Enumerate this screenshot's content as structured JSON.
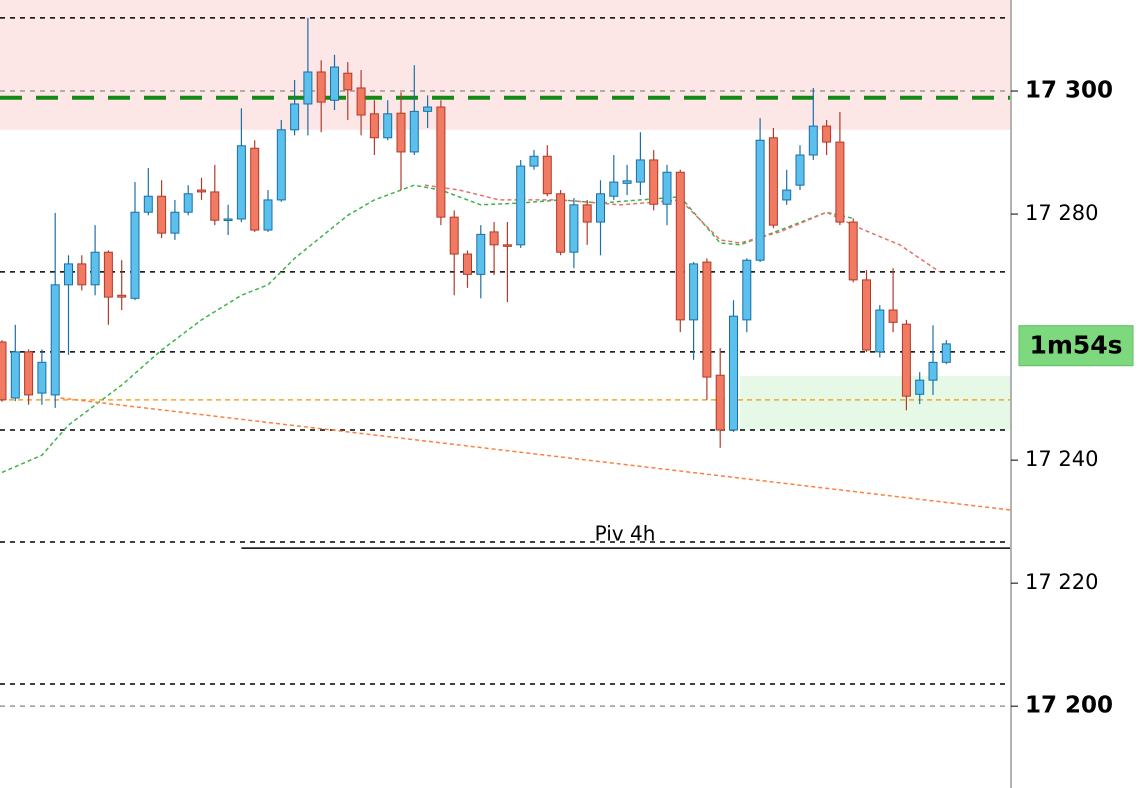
{
  "chart_data": {
    "type": "candlestick",
    "ylim": [
      17186.7,
      17314.8
    ],
    "yticks": [
      {
        "value": 17200,
        "label": "17 200",
        "bold": true
      },
      {
        "value": 17220,
        "label": "17 220"
      },
      {
        "value": 17240,
        "label": "17 240"
      },
      {
        "value": 17280,
        "label": "17 280"
      },
      {
        "value": 17300,
        "label": "17 300",
        "bold": true
      }
    ],
    "up_color": "#5bc0eb",
    "down_color": "#f07a62",
    "open": [
      17259.2,
      17250.1,
      17257.6,
      17250.9,
      17250.6,
      17268.5,
      17271.9,
      17268.5,
      17273.8,
      17266.8,
      17266.3,
      17280.3,
      17282.9,
      17276.9,
      17280.3,
      17283.9,
      17283.6,
      17279.0,
      17279.2,
      17290.7,
      17277.4,
      17282.3,
      17293.7,
      17297.9,
      17303.1,
      17298.5,
      17302.9,
      17300.5,
      17296.3,
      17292.4,
      17296.4,
      17290.1,
      17296.7,
      17297.4,
      17279.5,
      17273.5,
      17270.2,
      17277.1,
      17275.0,
      17275.0,
      17287.8,
      17289.4,
      17283.3,
      17273.8,
      17281.5,
      17278.7,
      17282.9,
      17285.0,
      17285.2,
      17288.8,
      17281.6,
      17286.8,
      17262.8,
      17272.2,
      17253.8,
      17244.9,
      17262.8,
      17272.5,
      17292.4,
      17282.3,
      17284.7,
      17289.6,
      17294.3,
      17291.7,
      17278.7,
      17269.3,
      17257.6,
      17264.4,
      17262.1,
      17250.7,
      17253.0,
      17255.9
    ],
    "high": [
      17259.5,
      17262.0,
      17258.0,
      17258.0,
      17280.2,
      17273.3,
      17273.3,
      17278.2,
      17274.1,
      17272.5,
      17285.2,
      17287.5,
      17285.5,
      17282.3,
      17284.7,
      17285.9,
      17288.0,
      17281.5,
      17297.2,
      17292.0,
      17283.9,
      17295.3,
      17301.8,
      17311.9,
      17305.0,
      17305.9,
      17304.7,
      17303.4,
      17298.5,
      17298.5,
      17299.8,
      17304.2,
      17299.3,
      17298.5,
      17280.6,
      17274.1,
      17278.2,
      17278.7,
      17278.7,
      17288.8,
      17290.4,
      17291.2,
      17283.9,
      17282.6,
      17282.3,
      17285.5,
      17289.6,
      17288.0,
      17293.3,
      17290.4,
      17288.0,
      17287.2,
      17272.2,
      17272.8,
      17258.2,
      17266.0,
      17272.8,
      17295.6,
      17294.0,
      17287.2,
      17291.2,
      17300.5,
      17295.3,
      17296.6,
      17279.3,
      17270.9,
      17265.2,
      17271.2,
      17262.8,
      17254.3,
      17261.9,
      17259.5
    ],
    "low": [
      17249.5,
      17249.6,
      17249.0,
      17249.0,
      17248.5,
      17257.1,
      17267.6,
      17266.8,
      17262.0,
      17264.4,
      17266.0,
      17279.8,
      17276.1,
      17275.8,
      17279.8,
      17282.3,
      17278.2,
      17276.6,
      17278.7,
      17277.1,
      17277.1,
      17282.0,
      17292.8,
      17292.8,
      17293.3,
      17296.9,
      17295.3,
      17292.8,
      17289.6,
      17292.0,
      17283.9,
      17289.6,
      17294.0,
      17278.2,
      17266.8,
      17268.0,
      17266.3,
      17270.1,
      17265.7,
      17274.5,
      17287.2,
      17282.9,
      17273.3,
      17271.2,
      17275.0,
      17273.3,
      17282.3,
      17283.1,
      17283.1,
      17280.6,
      17278.2,
      17260.8,
      17256.3,
      17249.8,
      17242.0,
      17244.6,
      17260.8,
      17272.2,
      17277.7,
      17281.5,
      17283.9,
      17288.8,
      17289.6,
      17278.2,
      17268.9,
      17257.6,
      17256.7,
      17260.8,
      17248.1,
      17249.1,
      17250.6,
      17255.6
    ],
    "close": [
      17249.8,
      17257.6,
      17250.6,
      17255.9,
      17268.5,
      17271.9,
      17268.5,
      17273.8,
      17266.5,
      17266.5,
      17280.3,
      17282.9,
      17276.9,
      17280.3,
      17283.3,
      17283.6,
      17279.0,
      17279.2,
      17291.1,
      17277.4,
      17282.3,
      17293.7,
      17297.9,
      17303.1,
      17298.2,
      17303.9,
      17300.2,
      17296.1,
      17292.4,
      17296.3,
      17290.1,
      17296.7,
      17297.4,
      17279.5,
      17273.5,
      17270.2,
      17276.7,
      17275.0,
      17274.8,
      17287.8,
      17289.4,
      17283.3,
      17273.8,
      17281.5,
      17278.7,
      17283.3,
      17285.2,
      17285.4,
      17288.8,
      17281.6,
      17286.8,
      17262.8,
      17271.9,
      17253.5,
      17244.9,
      17263.4,
      17272.5,
      17292.0,
      17278.2,
      17283.9,
      17289.6,
      17294.3,
      17291.7,
      17278.7,
      17269.3,
      17257.9,
      17264.4,
      17262.4,
      17250.4,
      17253.0,
      17255.9,
      17258.9
    ],
    "lines": [
      {
        "color": "#3cb44b",
        "x": [
          0,
          3,
          5,
          9,
          12,
          15,
          18,
          20,
          22,
          26,
          28,
          31,
          33,
          36,
          39,
          42,
          45,
          48,
          51,
          54,
          55.5,
          58.5,
          62,
          64
        ],
        "values": [
          17238.0,
          17240.8,
          17245.7,
          17252.2,
          17257.9,
          17262.8,
          17266.8,
          17268.5,
          17272.8,
          17279.8,
          17282.3,
          17284.7,
          17283.9,
          17281.5,
          17281.8,
          17282.3,
          17281.8,
          17282.3,
          17282.8,
          17275.3,
          17275.0,
          17277.4,
          17280.3,
          17279.3
        ]
      },
      {
        "color": "#e8706a",
        "x": [
          31.8,
          34.4,
          37.4,
          42,
          46.5,
          51,
          54,
          55.5,
          58.5,
          62,
          64.5,
          67.5,
          70.5
        ],
        "values": [
          17284.7,
          17283.9,
          17282.3,
          17282.3,
          17281.5,
          17282.3,
          17275.8,
          17275.3,
          17277.1,
          17280.3,
          17277.7,
          17275.0,
          17270.6
        ]
      },
      {
        "color": "#ff7f3f",
        "x": [
          4.4,
          75.8
        ],
        "values": [
          17250.1,
          17231.9
        ]
      }
    ],
    "zones": [
      {
        "from": 17293.7,
        "to": 17314.8,
        "color": "#fde6e6",
        "x_from": -1
      },
      {
        "from": 17244.9,
        "to": 17253.7,
        "color": "#e6f9e6",
        "x_from": 55.5
      }
    ],
    "levels": [
      {
        "value": 17311.9,
        "color": "#000",
        "width": 1.5,
        "dash": "5,5"
      },
      {
        "value": 17270.6,
        "color": "#000",
        "width": 1.5,
        "dash": "5,5"
      },
      {
        "value": 17257.6,
        "color": "#000",
        "width": 1.5,
        "dash": "5,5"
      },
      {
        "value": 17244.9,
        "color": "#000",
        "width": 1.5,
        "dash": "5,5"
      },
      {
        "value": 17226.7,
        "color": "#000",
        "width": 1.5,
        "dash": "5,5"
      },
      {
        "value": 17203.6,
        "color": "#000",
        "width": 1.5,
        "dash": "5,5"
      },
      {
        "value": 17300,
        "color": "#999",
        "width": 1.5,
        "dash": "5,5"
      },
      {
        "value": 17200,
        "color": "#999",
        "width": 1.5,
        "dash": "5,5"
      },
      {
        "value": 17298.9,
        "color": "#138a13",
        "width": 4,
        "dash": "22,14"
      },
      {
        "value": 17249.8,
        "color": "#f5a623",
        "width": 1.5,
        "dash": "5,4"
      }
    ],
    "pivot": {
      "label": "Piv 4h",
      "value": 17225.7,
      "x_from": 18
    },
    "countdown": {
      "label": "1m54s",
      "value": 17258.6
    }
  }
}
